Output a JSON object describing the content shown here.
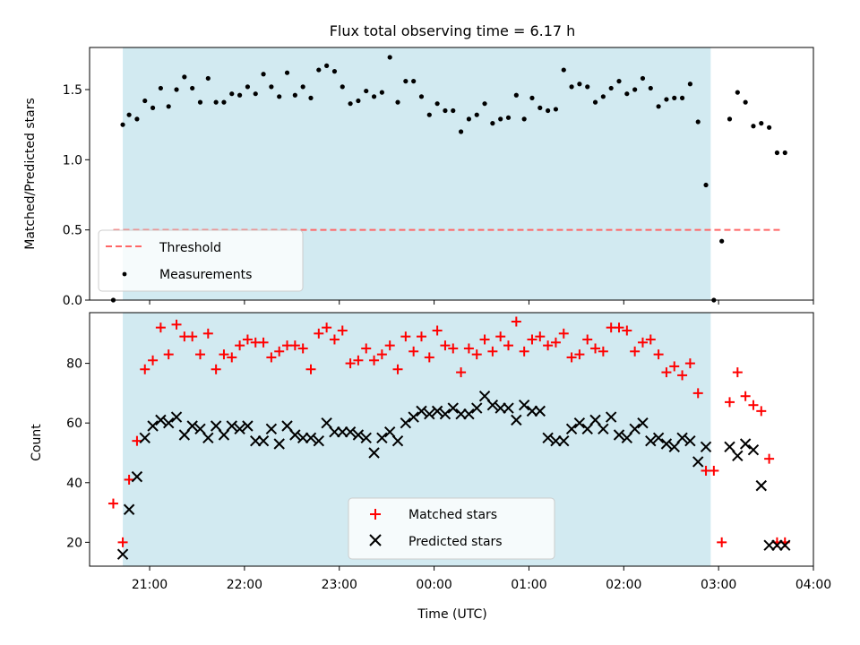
{
  "chart_data": [
    {
      "type": "scatter",
      "title": "Flux total observing time = 6.17 h",
      "xlabel": "",
      "ylabel": "Matched/Predicted stars",
      "xlim": [
        "20:22",
        "04:00"
      ],
      "ylim": [
        0.0,
        1.8
      ],
      "yticks": [
        0.0,
        0.5,
        1.0,
        1.5
      ],
      "ytick_labels": [
        "0.0",
        "0.5",
        "1.0",
        "1.5"
      ],
      "shaded_span": {
        "from": "20:43",
        "to": "02:55",
        "color": "#add8e6"
      },
      "legend_position": "lower-left",
      "threshold": {
        "name": "Threshold",
        "value": 0.5,
        "from": "20:37",
        "to": "03:40",
        "color": "#ff6666",
        "style": "dashed"
      },
      "series": [
        {
          "name": "Measurements",
          "color": "#000000",
          "marker": "dot",
          "x": [
            "20:37",
            "20:43",
            "20:47",
            "20:52",
            "20:57",
            "21:02",
            "21:07",
            "21:12",
            "21:17",
            "21:22",
            "21:27",
            "21:32",
            "21:37",
            "21:42",
            "21:47",
            "21:52",
            "21:57",
            "22:02",
            "22:07",
            "22:12",
            "22:17",
            "22:22",
            "22:27",
            "22:32",
            "22:37",
            "22:42",
            "22:47",
            "22:52",
            "22:57",
            "23:02",
            "23:07",
            "23:12",
            "23:17",
            "23:22",
            "23:27",
            "23:32",
            "23:37",
            "23:42",
            "23:47",
            "23:52",
            "23:57",
            "00:02",
            "00:07",
            "00:12",
            "00:17",
            "00:22",
            "00:27",
            "00:32",
            "00:37",
            "00:42",
            "00:47",
            "00:52",
            "00:57",
            "01:02",
            "01:07",
            "01:12",
            "01:17",
            "01:22",
            "01:27",
            "01:32",
            "01:37",
            "01:42",
            "01:47",
            "01:52",
            "01:57",
            "02:02",
            "02:07",
            "02:12",
            "02:17",
            "02:22",
            "02:27",
            "02:32",
            "02:37",
            "02:42",
            "02:47",
            "02:52",
            "02:57",
            "03:02",
            "03:07",
            "03:12",
            "03:17",
            "03:22",
            "03:27",
            "03:32",
            "03:37",
            "03:42"
          ],
          "y": [
            0.0,
            1.25,
            1.32,
            1.29,
            1.42,
            1.37,
            1.51,
            1.38,
            1.5,
            1.59,
            1.51,
            1.41,
            1.58,
            1.41,
            1.41,
            1.47,
            1.46,
            1.52,
            1.47,
            1.61,
            1.52,
            1.45,
            1.62,
            1.46,
            1.52,
            1.44,
            1.64,
            1.67,
            1.63,
            1.52,
            1.4,
            1.42,
            1.49,
            1.45,
            1.48,
            1.73,
            1.41,
            1.56,
            1.56,
            1.45,
            1.32,
            1.4,
            1.35,
            1.35,
            1.2,
            1.29,
            1.32,
            1.4,
            1.26,
            1.29,
            1.3,
            1.46,
            1.29,
            1.44,
            1.37,
            1.35,
            1.36,
            1.64,
            1.52,
            1.54,
            1.52,
            1.41,
            1.45,
            1.51,
            1.56,
            1.47,
            1.5,
            1.58,
            1.51,
            1.38,
            1.43,
            1.44,
            1.44,
            1.54,
            1.27,
            0.82,
            0.0,
            0.42,
            1.29,
            1.48,
            1.41,
            1.24,
            1.26,
            1.23,
            1.05,
            1.05
          ]
        }
      ]
    },
    {
      "type": "scatter",
      "title": "",
      "xlabel": "Time (UTC)",
      "ylabel": "Count",
      "xlim": [
        "20:22",
        "04:00"
      ],
      "ylim": [
        12,
        97
      ],
      "yticks": [
        20,
        40,
        60,
        80
      ],
      "ytick_labels": [
        "20",
        "40",
        "60",
        "80"
      ],
      "xticks": [
        "21:00",
        "22:00",
        "23:00",
        "00:00",
        "01:00",
        "02:00",
        "03:00",
        "04:00"
      ],
      "shaded_span": {
        "from": "20:43",
        "to": "02:55",
        "color": "#add8e6"
      },
      "legend_position": "lower-center",
      "series": [
        {
          "name": "Matched stars",
          "color": "#ff0000",
          "marker": "plus",
          "x": [
            "20:37",
            "20:43",
            "20:47",
            "20:52",
            "20:57",
            "21:02",
            "21:07",
            "21:12",
            "21:17",
            "21:22",
            "21:27",
            "21:32",
            "21:37",
            "21:42",
            "21:47",
            "21:52",
            "21:57",
            "22:02",
            "22:07",
            "22:12",
            "22:17",
            "22:22",
            "22:27",
            "22:32",
            "22:37",
            "22:42",
            "22:47",
            "22:52",
            "22:57",
            "23:02",
            "23:07",
            "23:12",
            "23:17",
            "23:22",
            "23:27",
            "23:32",
            "23:37",
            "23:42",
            "23:47",
            "23:52",
            "23:57",
            "00:02",
            "00:07",
            "00:12",
            "00:17",
            "00:22",
            "00:27",
            "00:32",
            "00:37",
            "00:42",
            "00:47",
            "00:52",
            "00:57",
            "01:02",
            "01:07",
            "01:12",
            "01:17",
            "01:22",
            "01:27",
            "01:32",
            "01:37",
            "01:42",
            "01:47",
            "01:52",
            "01:57",
            "02:02",
            "02:07",
            "02:12",
            "02:17",
            "02:22",
            "02:27",
            "02:32",
            "02:37",
            "02:42",
            "02:47",
            "02:52",
            "02:57",
            "03:02",
            "03:07",
            "03:12",
            "03:17",
            "03:22",
            "03:27",
            "03:32",
            "03:37",
            "03:42"
          ],
          "y": [
            33,
            20,
            41,
            54,
            78,
            81,
            92,
            83,
            93,
            89,
            89,
            83,
            90,
            78,
            83,
            82,
            86,
            88,
            87,
            87,
            82,
            84,
            86,
            86,
            85,
            78,
            90,
            92,
            88,
            91,
            80,
            81,
            85,
            81,
            83,
            86,
            78,
            89,
            84,
            89,
            82,
            91,
            86,
            85,
            77,
            85,
            83,
            88,
            84,
            89,
            86,
            94,
            84,
            88,
            89,
            86,
            87,
            90,
            82,
            83,
            88,
            85,
            84,
            92,
            92,
            91,
            84,
            87,
            88,
            83,
            77,
            79,
            76,
            80,
            70,
            44,
            44,
            20,
            67,
            77,
            69,
            66,
            64,
            48,
            20,
            20
          ]
        },
        {
          "name": "Predicted stars",
          "color": "#000000",
          "marker": "x",
          "x": [
            "20:43",
            "20:47",
            "20:52",
            "20:57",
            "21:02",
            "21:07",
            "21:12",
            "21:17",
            "21:22",
            "21:27",
            "21:32",
            "21:37",
            "21:42",
            "21:47",
            "21:52",
            "21:57",
            "22:02",
            "22:07",
            "22:12",
            "22:17",
            "22:22",
            "22:27",
            "22:32",
            "22:37",
            "22:42",
            "22:47",
            "22:52",
            "22:57",
            "23:02",
            "23:07",
            "23:12",
            "23:17",
            "23:22",
            "23:27",
            "23:32",
            "23:37",
            "23:42",
            "23:47",
            "23:52",
            "23:57",
            "00:02",
            "00:07",
            "00:12",
            "00:17",
            "00:22",
            "00:27",
            "00:32",
            "00:37",
            "00:42",
            "00:47",
            "00:52",
            "00:57",
            "01:02",
            "01:07",
            "01:12",
            "01:17",
            "01:22",
            "01:27",
            "01:32",
            "01:37",
            "01:42",
            "01:47",
            "01:52",
            "01:57",
            "02:02",
            "02:07",
            "02:12",
            "02:17",
            "02:22",
            "02:27",
            "02:32",
            "02:37",
            "02:42",
            "02:47",
            "02:52",
            "03:07",
            "03:12",
            "03:17",
            "03:22",
            "03:27",
            "03:32",
            "03:37",
            "03:42"
          ],
          "y": [
            16,
            31,
            42,
            55,
            59,
            61,
            60,
            62,
            56,
            59,
            58,
            55,
            59,
            56,
            59,
            58,
            59,
            54,
            54,
            58,
            53,
            59,
            56,
            55,
            55,
            54,
            60,
            57,
            57,
            57,
            56,
            55,
            50,
            55,
            57,
            54,
            60,
            62,
            64,
            63,
            64,
            63,
            65,
            63,
            63,
            65,
            69,
            66,
            65,
            65,
            61,
            66,
            64,
            64,
            55,
            54,
            54,
            58,
            60,
            58,
            61,
            58,
            62,
            56,
            55,
            58,
            60,
            54,
            55,
            53,
            52,
            55,
            54,
            47,
            52,
            52,
            49,
            53,
            51,
            39,
            19,
            19,
            19
          ]
        }
      ]
    }
  ]
}
